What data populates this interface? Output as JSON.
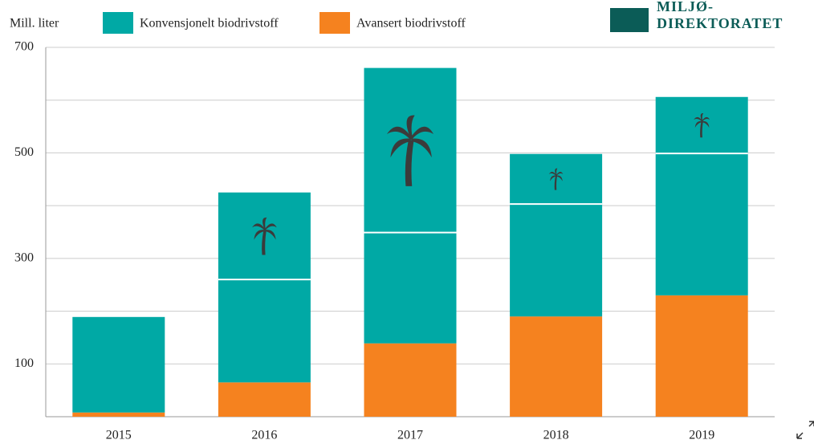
{
  "chart_data": {
    "type": "stacked_bar",
    "y_label": "Mill. liter",
    "logo": [
      "MILJØ-",
      "DIREKTORATET"
    ],
    "categories": [
      "2015",
      "2016",
      "2017",
      "2018",
      "2019"
    ],
    "series": [
      {
        "name": "Avansert biodrivstoff",
        "color": "#f5821f",
        "values": [
          8,
          65,
          139,
          190,
          230
        ]
      },
      {
        "name": "Konvensjonelt biodrivstoff",
        "color": "#00a9a5",
        "values": [
          181,
          360,
          522,
          308,
          376
        ]
      }
    ],
    "palm_line": [
      null,
      260,
      349,
      403,
      499
    ],
    "ylim": [
      0,
      700
    ],
    "yticks": [
      100,
      300,
      500,
      700
    ],
    "gridlines": [
      200,
      400,
      600
    ],
    "grid": true
  }
}
